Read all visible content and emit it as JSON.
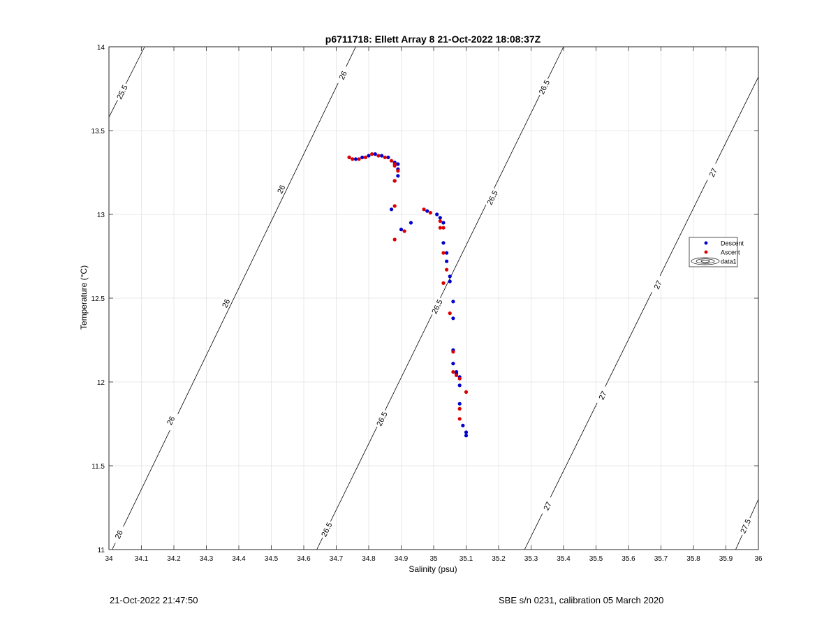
{
  "chart_data": {
    "type": "scatter",
    "title": "p6711718: Ellett Array 8 21-Oct-2022 18:08:37Z",
    "xlabel": "Salinity (psu)",
    "ylabel": "Temperature (°C)",
    "xlim": [
      34,
      36
    ],
    "ylim": [
      11,
      14
    ],
    "xticks": [
      34,
      34.1,
      34.2,
      34.3,
      34.4,
      34.5,
      34.6,
      34.7,
      34.8,
      34.9,
      35,
      35.1,
      35.2,
      35.3,
      35.4,
      35.5,
      35.6,
      35.7,
      35.8,
      35.9,
      36
    ],
    "xtick_labels": [
      "34",
      "34.1",
      "34.2",
      "34.3",
      "34.4",
      "34.5",
      "34.6",
      "34.7",
      "34.8",
      "34.9",
      "35",
      "35.1",
      "35.2",
      "35.3",
      "35.4",
      "35.5",
      "35.6",
      "35.7",
      "35.8",
      "35.9",
      "36"
    ],
    "yticks": [
      11,
      11.5,
      12,
      12.5,
      13,
      13.5,
      14
    ],
    "ytick_labels": [
      "11",
      "11.5",
      "12",
      "12.5",
      "13",
      "13.5",
      "14"
    ],
    "grid": true,
    "legend_placement": "right",
    "legend": [
      "Descent",
      "Ascent",
      "data1"
    ],
    "series": [
      {
        "name": "Descent",
        "color": "#0000cc",
        "points": [
          [
            34.74,
            13.34
          ],
          [
            34.76,
            13.33
          ],
          [
            34.78,
            13.34
          ],
          [
            34.8,
            13.35
          ],
          [
            34.82,
            13.36
          ],
          [
            34.84,
            13.35
          ],
          [
            34.86,
            13.34
          ],
          [
            34.88,
            13.31
          ],
          [
            34.89,
            13.3
          ],
          [
            34.89,
            13.27
          ],
          [
            34.89,
            13.23
          ],
          [
            34.88,
            13.2
          ],
          [
            34.87,
            13.03
          ],
          [
            34.9,
            12.91
          ],
          [
            34.93,
            12.95
          ],
          [
            34.98,
            13.02
          ],
          [
            35.01,
            13.0
          ],
          [
            35.02,
            12.98
          ],
          [
            35.03,
            12.95
          ],
          [
            35.03,
            12.83
          ],
          [
            35.04,
            12.77
          ],
          [
            35.04,
            12.72
          ],
          [
            35.05,
            12.63
          ],
          [
            35.05,
            12.6
          ],
          [
            35.06,
            12.48
          ],
          [
            35.06,
            12.38
          ],
          [
            35.06,
            12.19
          ],
          [
            35.06,
            12.11
          ],
          [
            35.07,
            12.06
          ],
          [
            35.07,
            12.05
          ],
          [
            35.08,
            12.03
          ],
          [
            35.08,
            11.98
          ],
          [
            35.08,
            11.87
          ],
          [
            35.09,
            11.74
          ],
          [
            35.1,
            11.7
          ],
          [
            35.1,
            11.68
          ]
        ]
      },
      {
        "name": "Ascent",
        "color": "#dd0000",
        "points": [
          [
            34.74,
            13.34
          ],
          [
            34.75,
            13.33
          ],
          [
            34.77,
            13.33
          ],
          [
            34.79,
            13.34
          ],
          [
            34.81,
            13.36
          ],
          [
            34.83,
            13.35
          ],
          [
            34.85,
            13.34
          ],
          [
            34.87,
            13.32
          ],
          [
            34.88,
            13.3
          ],
          [
            34.88,
            13.29
          ],
          [
            34.89,
            13.26
          ],
          [
            34.88,
            13.2
          ],
          [
            34.88,
            13.05
          ],
          [
            34.88,
            12.85
          ],
          [
            34.91,
            12.9
          ],
          [
            34.97,
            13.03
          ],
          [
            34.99,
            13.01
          ],
          [
            35.02,
            12.96
          ],
          [
            35.03,
            12.92
          ],
          [
            35.02,
            12.92
          ],
          [
            35.03,
            12.77
          ],
          [
            35.04,
            12.67
          ],
          [
            35.03,
            12.59
          ],
          [
            35.05,
            12.41
          ],
          [
            35.06,
            12.18
          ],
          [
            35.06,
            12.06
          ],
          [
            35.07,
            12.04
          ],
          [
            35.08,
            12.02
          ],
          [
            35.1,
            11.94
          ],
          [
            35.08,
            11.84
          ],
          [
            35.08,
            11.78
          ]
        ]
      }
    ],
    "density_contours": [
      {
        "label": "25.5",
        "points": [
          [
            34.0,
            13.58
          ],
          [
            34.11,
            14.0
          ]
        ]
      },
      {
        "label": "26",
        "points": [
          [
            34.01,
            11.0
          ],
          [
            34.76,
            14.0
          ]
        ]
      },
      {
        "label": "26.5",
        "points": [
          [
            34.64,
            11.0
          ],
          [
            35.4,
            14.0
          ]
        ]
      },
      {
        "label": "27",
        "points": [
          [
            35.28,
            11.0
          ],
          [
            36.0,
            13.82
          ]
        ]
      },
      {
        "label": "27.5",
        "points": [
          [
            35.93,
            11.0
          ],
          [
            36.0,
            11.3
          ]
        ]
      }
    ],
    "contour_labels": [
      {
        "text": "25.5",
        "at": [
          34.04,
          13.73
        ]
      },
      {
        "text": "26",
        "at": [
          34.72,
          13.83
        ]
      },
      {
        "text": "26",
        "at": [
          34.53,
          13.15
        ]
      },
      {
        "text": "26",
        "at": [
          34.36,
          12.47
        ]
      },
      {
        "text": "26",
        "at": [
          34.19,
          11.77
        ]
      },
      {
        "text": "26",
        "at": [
          34.03,
          11.09
        ]
      },
      {
        "text": "26.5",
        "at": [
          35.34,
          13.76
        ]
      },
      {
        "text": "26.5",
        "at": [
          35.18,
          13.1
        ]
      },
      {
        "text": "26.5",
        "at": [
          35.01,
          12.45
        ]
      },
      {
        "text": "26.5",
        "at": [
          34.84,
          11.78
        ]
      },
      {
        "text": "26.5",
        "at": [
          34.67,
          11.12
        ]
      },
      {
        "text": "27",
        "at": [
          35.86,
          13.25
        ]
      },
      {
        "text": "27",
        "at": [
          35.69,
          12.58
        ]
      },
      {
        "text": "27",
        "at": [
          35.52,
          11.92
        ]
      },
      {
        "text": "27",
        "at": [
          35.35,
          11.26
        ]
      },
      {
        "text": "27.5",
        "at": [
          35.96,
          11.14
        ]
      }
    ]
  },
  "footer": {
    "timestamp": "21-Oct-2022 21:47:50",
    "instrument": "SBE s/n 0231, calibration 05 March 2020"
  }
}
